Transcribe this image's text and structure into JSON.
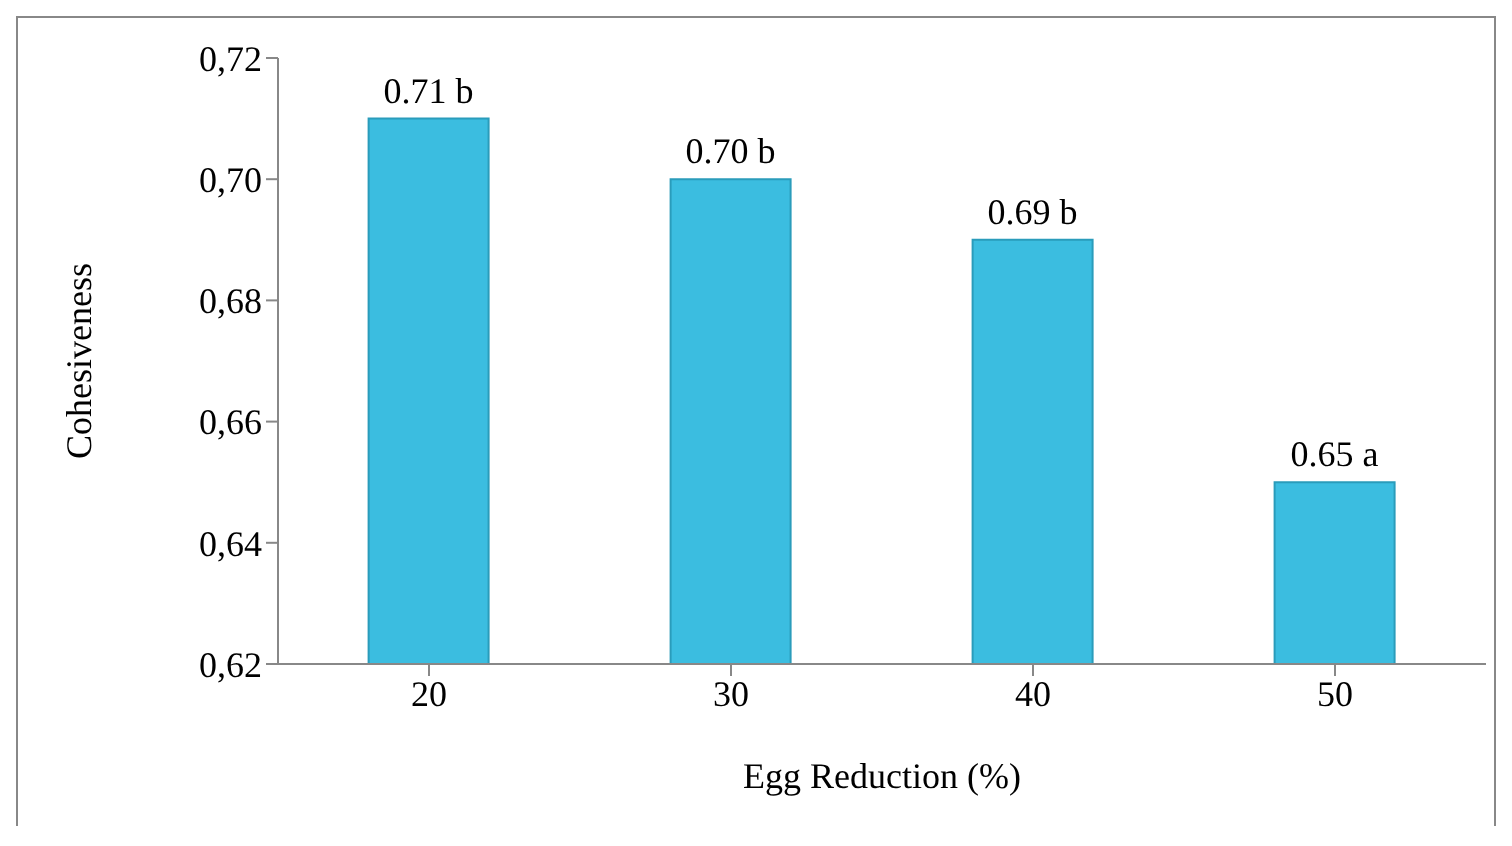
{
  "chart_data": {
    "type": "bar",
    "xlabel": "Egg Reduction (%)",
    "ylabel": "Cohesiveness",
    "categories": [
      "20",
      "30",
      "40",
      "50"
    ],
    "values": [
      0.71,
      0.7,
      0.69,
      0.65
    ],
    "value_labels": [
      "0.71 b",
      "0.70 b",
      "0.69 b",
      "0.65 a"
    ],
    "color": "#3bbde0",
    "ylim": [
      0.62,
      0.72
    ],
    "yticks": [
      {
        "value": 0.62,
        "label": "0,62"
      },
      {
        "value": 0.64,
        "label": "0,64"
      },
      {
        "value": 0.66,
        "label": "0,66"
      },
      {
        "value": 0.68,
        "label": "0,68"
      },
      {
        "value": 0.7,
        "label": "0,70"
      },
      {
        "value": 0.72,
        "label": "0,72"
      }
    ],
    "grid": false,
    "legend": false
  }
}
